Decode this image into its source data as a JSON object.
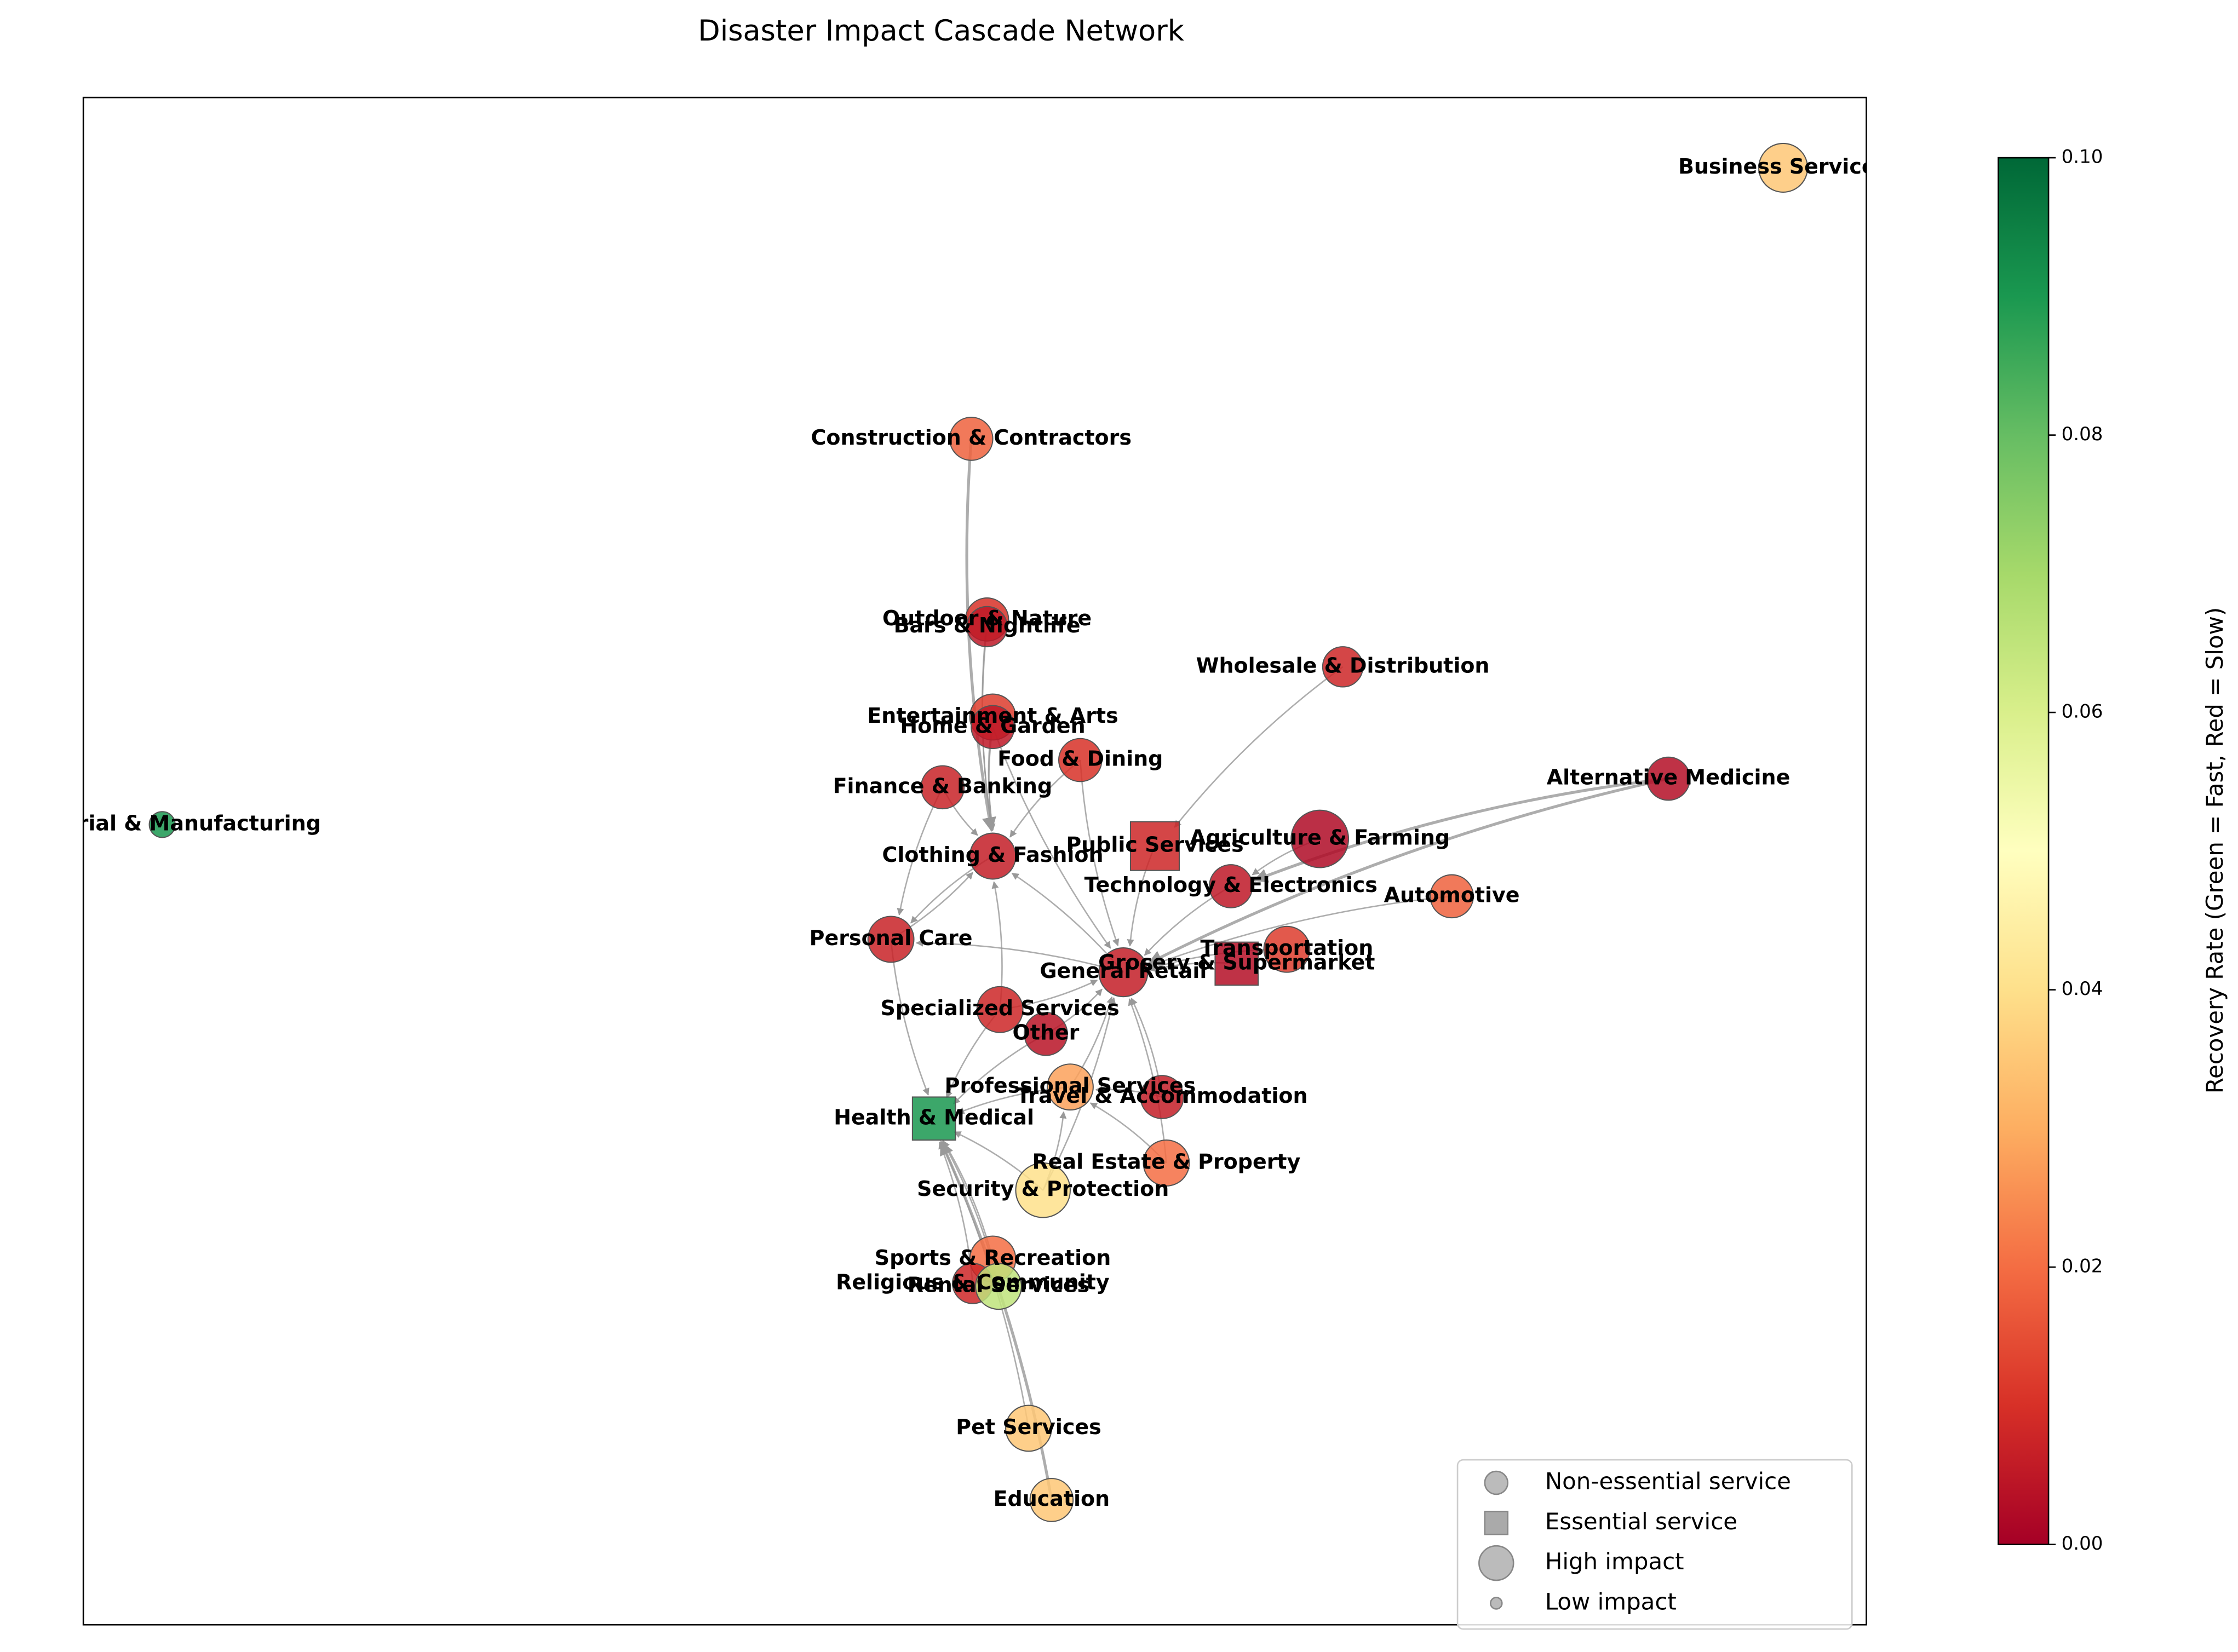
{
  "chart_data": {
    "type": "network",
    "title": "Disaster Impact Cascade Network",
    "nodes": [
      {
        "label": "Business Services",
        "recovery_rate": 0.035,
        "essential": false
      },
      {
        "label": "Construction & Contractors",
        "recovery_rate": 0.018,
        "essential": false
      },
      {
        "label": "Outdoor & Nature",
        "recovery_rate": 0.01,
        "essential": false
      },
      {
        "label": "Bars & Nightlife",
        "recovery_rate": 0.005,
        "essential": false
      },
      {
        "label": "Wholesale & Distribution",
        "recovery_rate": 0.008,
        "essential": false
      },
      {
        "label": "Entertainment & Arts",
        "recovery_rate": 0.012,
        "essential": false
      },
      {
        "label": "Home & Garden",
        "recovery_rate": 0.005,
        "essential": false
      },
      {
        "label": "Food & Dining",
        "recovery_rate": 0.01,
        "essential": false
      },
      {
        "label": "Finance & Banking",
        "recovery_rate": 0.007,
        "essential": false
      },
      {
        "label": "Alternative Medicine",
        "recovery_rate": 0.003,
        "essential": false
      },
      {
        "label": "Industrial & Manufacturing",
        "recovery_rate": 0.09,
        "essential": false
      },
      {
        "label": "Agriculture & Farming",
        "recovery_rate": 0.002,
        "essential": false
      },
      {
        "label": "Public Services",
        "recovery_rate": 0.008,
        "essential": true
      },
      {
        "label": "Clothing & Fashion",
        "recovery_rate": 0.006,
        "essential": false
      },
      {
        "label": "Technology & Electronics",
        "recovery_rate": 0.005,
        "essential": false
      },
      {
        "label": "Automotive",
        "recovery_rate": 0.018,
        "essential": false
      },
      {
        "label": "Personal Care",
        "recovery_rate": 0.007,
        "essential": false
      },
      {
        "label": "Transportation",
        "recovery_rate": 0.012,
        "essential": false
      },
      {
        "label": "Grocery & Supermarket",
        "recovery_rate": 0.003,
        "essential": true
      },
      {
        "label": "General Retail",
        "recovery_rate": 0.006,
        "essential": false
      },
      {
        "label": "Specialized Services",
        "recovery_rate": 0.008,
        "essential": false
      },
      {
        "label": "Other",
        "recovery_rate": 0.004,
        "essential": false
      },
      {
        "label": "Professional Services",
        "recovery_rate": 0.028,
        "essential": false
      },
      {
        "label": "Travel & Accommodation",
        "recovery_rate": 0.006,
        "essential": false
      },
      {
        "label": "Health & Medical",
        "recovery_rate": 0.09,
        "essential": true
      },
      {
        "label": "Real Estate & Property",
        "recovery_rate": 0.02,
        "essential": false
      },
      {
        "label": "Security & Protection",
        "recovery_rate": 0.04,
        "essential": false
      },
      {
        "label": "Sports & Recreation",
        "recovery_rate": 0.02,
        "essential": false
      },
      {
        "label": "Religious & Community",
        "recovery_rate": 0.008,
        "essential": false
      },
      {
        "label": "Rental Services",
        "recovery_rate": 0.065,
        "essential": false
      },
      {
        "label": "Pet Services",
        "recovery_rate": 0.035,
        "essential": false
      },
      {
        "label": "Education",
        "recovery_rate": 0.035,
        "essential": false
      }
    ],
    "edges": [
      [
        1,
        13
      ],
      [
        2,
        13
      ],
      [
        3,
        13
      ],
      [
        5,
        13
      ],
      [
        6,
        13
      ],
      [
        7,
        13
      ],
      [
        8,
        13
      ],
      [
        8,
        16
      ],
      [
        4,
        12
      ],
      [
        9,
        19
      ],
      [
        9,
        14
      ],
      [
        15,
        19
      ],
      [
        11,
        14
      ],
      [
        14,
        19
      ],
      [
        17,
        19
      ],
      [
        18,
        19
      ],
      [
        20,
        19
      ],
      [
        21,
        19
      ],
      [
        22,
        19
      ],
      [
        23,
        19
      ],
      [
        25,
        19
      ],
      [
        26,
        19
      ],
      [
        16,
        24
      ],
      [
        20,
        24
      ],
      [
        21,
        24
      ],
      [
        22,
        24
      ],
      [
        26,
        24
      ],
      [
        27,
        24
      ],
      [
        28,
        24
      ],
      [
        29,
        24
      ],
      [
        30,
        24
      ],
      [
        31,
        24
      ],
      [
        19,
        13
      ],
      [
        19,
        16
      ],
      [
        20,
        13
      ],
      [
        23,
        22
      ],
      [
        25,
        22
      ],
      [
        7,
        19
      ],
      [
        13,
        16
      ],
      [
        12,
        19
      ],
      [
        26,
        22
      ],
      [
        16,
        13
      ],
      [
        6,
        19
      ]
    ],
    "colorbar": {
      "label": "Recovery Rate (Green = Fast, Red = Slow)",
      "lim": [
        0,
        0.1
      ],
      "ticks": [
        {
          "value": 0,
          "label": "0.00"
        },
        {
          "value": 0.02,
          "label": "0.02"
        },
        {
          "value": 0.04,
          "label": "0.04"
        },
        {
          "value": 0.06,
          "label": "0.06"
        },
        {
          "value": 0.08,
          "label": "0.08"
        },
        {
          "value": 0.1,
          "label": "0.10"
        }
      ]
    },
    "legend": [
      "Non-essential service",
      "Essential service",
      "High impact",
      "Low impact"
    ]
  }
}
